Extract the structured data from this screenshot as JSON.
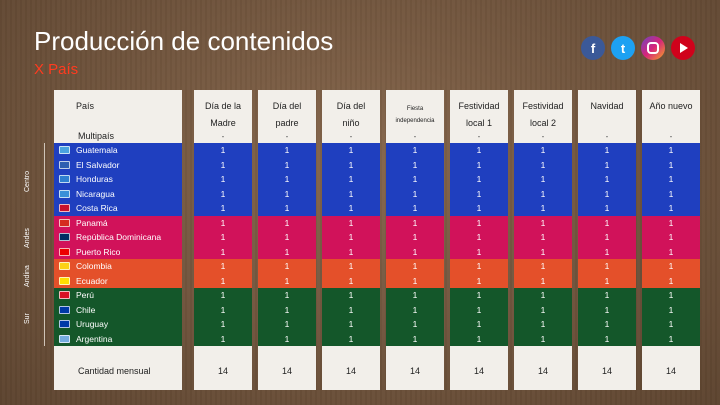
{
  "title": "Producción de contenidos",
  "subtitle": "X País",
  "social": [
    "facebook-icon",
    "twitter-icon",
    "instagram-icon",
    "youtube-icon"
  ],
  "header": {
    "pais": "País",
    "multi": "Multipaís",
    "cols": [
      {
        "l1": "Día de la",
        "l2": "Madre"
      },
      {
        "l1": "Día del",
        "l2": "padre"
      },
      {
        "l1": "Día del",
        "l2": "niño"
      },
      {
        "l1": "Fiesta",
        "l2": "independencia",
        "small": true
      },
      {
        "l1": "Festividad",
        "l2": "local 1"
      },
      {
        "l1": "Festividad",
        "l2": "local 2"
      },
      {
        "l1": "Navidad",
        "l2": ""
      },
      {
        "l1": "Año nuevo",
        "l2": ""
      }
    ],
    "dot": "-"
  },
  "regions": [
    "Centro",
    "Andes",
    "Andina",
    "Sur"
  ],
  "rows": [
    {
      "country": "Guatemala",
      "color": "#1f3fbf",
      "flag": "#4aa3df",
      "v": [
        "1",
        "1",
        "1",
        "1",
        "1",
        "1",
        "1",
        "1"
      ]
    },
    {
      "country": "El Salvador",
      "color": "#1f3fbf",
      "flag": "#2f5fb0",
      "v": [
        "1",
        "1",
        "1",
        "1",
        "1",
        "1",
        "1",
        "1"
      ]
    },
    {
      "country": "Honduras",
      "color": "#1f3fbf",
      "flag": "#2e7fd0",
      "v": [
        "1",
        "1",
        "1",
        "1",
        "1",
        "1",
        "1",
        "1"
      ]
    },
    {
      "country": "Nicaragua",
      "color": "#1f3fbf",
      "flag": "#3a8fd8",
      "v": [
        "1",
        "1",
        "1",
        "1",
        "1",
        "1",
        "1",
        "1"
      ]
    },
    {
      "country": "Costa Rica",
      "color": "#1f3fbf",
      "flag": "#c8102e",
      "v": [
        "1",
        "1",
        "1",
        "1",
        "1",
        "1",
        "1",
        "1"
      ]
    },
    {
      "country": "Panamá",
      "color": "#d1125a",
      "flag": "#d52b1e",
      "v": [
        "1",
        "1",
        "1",
        "1",
        "1",
        "1",
        "1",
        "1"
      ]
    },
    {
      "country": "República Dominicana",
      "color": "#d1125a",
      "flag": "#002d62",
      "v": [
        "1",
        "1",
        "1",
        "1",
        "1",
        "1",
        "1",
        "1"
      ]
    },
    {
      "country": "Puerto Rico",
      "color": "#d1125a",
      "flag": "#ed0000",
      "v": [
        "1",
        "1",
        "1",
        "1",
        "1",
        "1",
        "1",
        "1"
      ]
    },
    {
      "country": "Colombia",
      "color": "#e4502a",
      "flag": "#fcd116",
      "v": [
        "1",
        "1",
        "1",
        "1",
        "1",
        "1",
        "1",
        "1"
      ]
    },
    {
      "country": "Ecuador",
      "color": "#e4502a",
      "flag": "#ffdd00",
      "v": [
        "1",
        "1",
        "1",
        "1",
        "1",
        "1",
        "1",
        "1"
      ]
    },
    {
      "country": "Perú",
      "color": "#14572a",
      "flag": "#d91023",
      "v": [
        "1",
        "1",
        "1",
        "1",
        "1",
        "1",
        "1",
        "1"
      ]
    },
    {
      "country": "Chile",
      "color": "#14572a",
      "flag": "#0039a6",
      "v": [
        "1",
        "1",
        "1",
        "1",
        "1",
        "1",
        "1",
        "1"
      ]
    },
    {
      "country": "Uruguay",
      "color": "#14572a",
      "flag": "#0038a8",
      "v": [
        "1",
        "1",
        "1",
        "1",
        "1",
        "1",
        "1",
        "1"
      ]
    },
    {
      "country": "Argentina",
      "color": "#14572a",
      "flag": "#74acdf",
      "v": [
        "1",
        "1",
        "1",
        "1",
        "1",
        "1",
        "1",
        "1"
      ]
    }
  ],
  "footer": {
    "label": "Cantidad mensual",
    "totals": [
      "14",
      "14",
      "14",
      "14",
      "14",
      "14",
      "14",
      "14"
    ]
  }
}
